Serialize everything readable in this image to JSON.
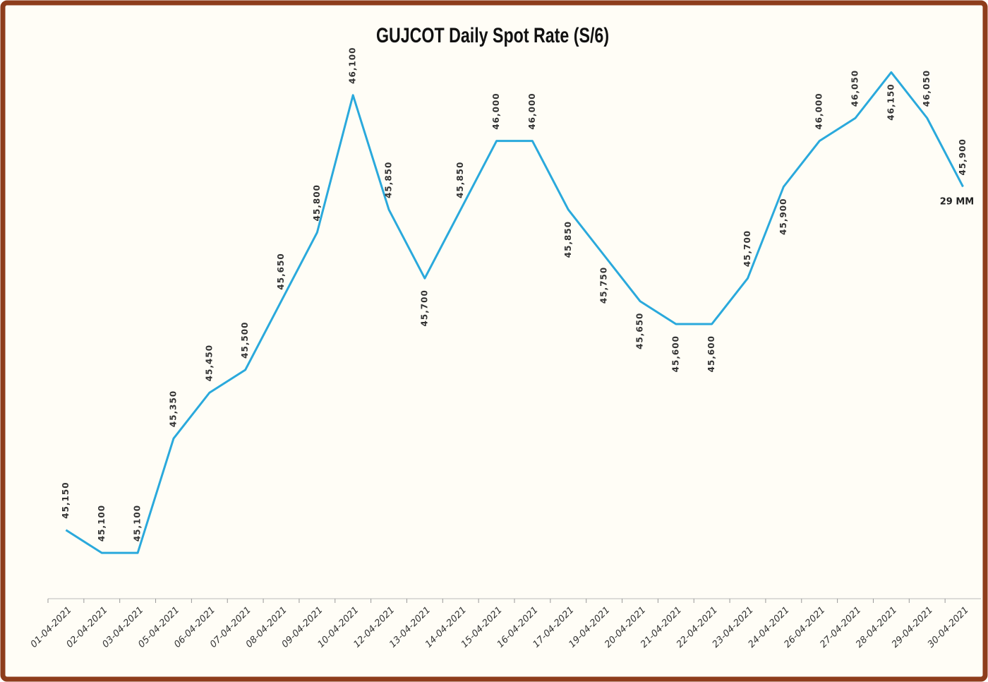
{
  "chart_data": {
    "type": "line",
    "title": "GUJCOT Daily Spot Rate (S/6)",
    "categories": [
      "01-04-2021",
      "02-04-2021",
      "03-04-2021",
      "05-04-2021",
      "06-04-2021",
      "07-04-2021",
      "08-04-2021",
      "09-04-2021",
      "10-04-2021",
      "12-04-2021",
      "13-04-2021",
      "14-04-2021",
      "15-04-2021",
      "16-04-2021",
      "17-04-2021",
      "19-04-2021",
      "20-04-2021",
      "21-04-2021",
      "22-04-2021",
      "23-04-2021",
      "24-04-2021",
      "26-04-2021",
      "27-04-2021",
      "28-04-2021",
      "29-04-2021",
      "30-04-2021"
    ],
    "values": [
      45150,
      45100,
      45100,
      45350,
      45450,
      45500,
      45650,
      45800,
      46100,
      45850,
      45700,
      45850,
      46000,
      46000,
      45850,
      45750,
      45650,
      45600,
      45600,
      45700,
      45900,
      46000,
      46050,
      46150,
      46050,
      45900
    ],
    "value_labels": [
      "45,150",
      "45,100",
      "45,100",
      "45,350",
      "45,450",
      "45,500",
      "45,650",
      "45,800",
      "46,100",
      "45,850",
      "45,700",
      "45,850",
      "46,000",
      "46,000",
      "45,850",
      "45,750",
      "45,650",
      "45,600",
      "45,600",
      "45,700",
      "45,900",
      "46,000",
      "46,050",
      "46,150",
      "46,050",
      "45,900"
    ],
    "color": "#2aa9dc",
    "ylim": [
      45000,
      46200
    ],
    "annotation": "29 MM"
  }
}
